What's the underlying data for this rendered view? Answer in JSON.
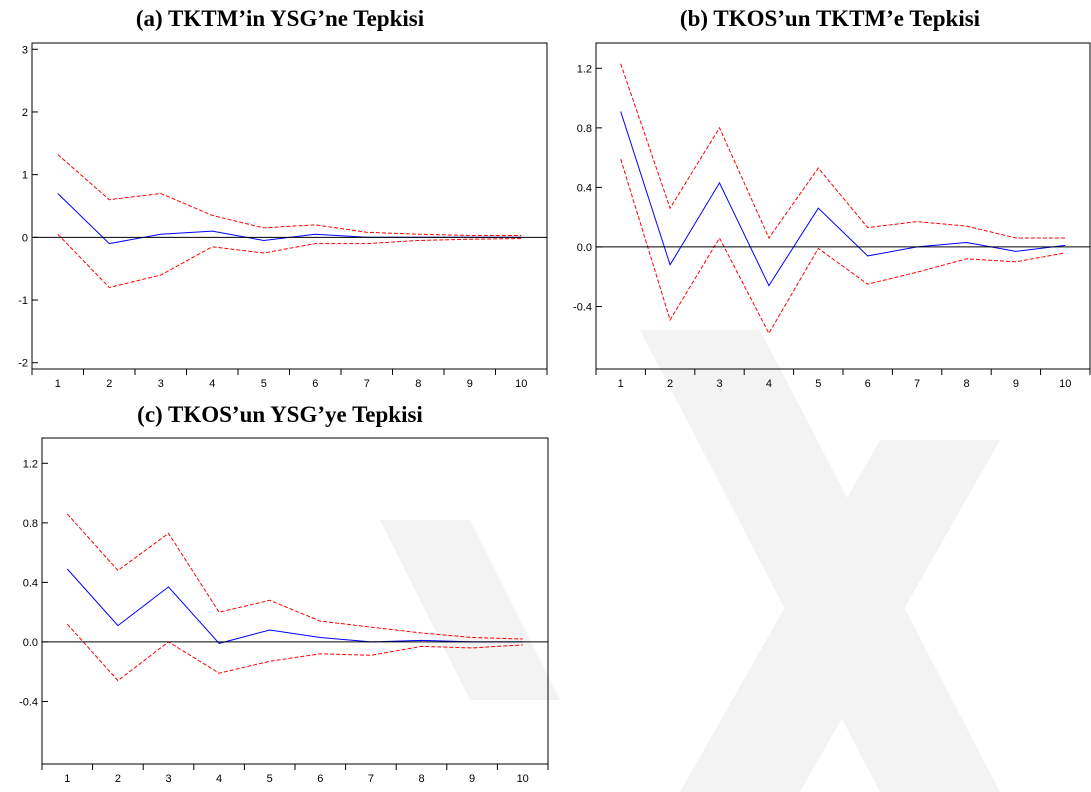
{
  "chart_data": [
    {
      "type": "line",
      "title": "(a) TKTM’in YSG’ne Tepkisi",
      "x": [
        1,
        2,
        3,
        4,
        5,
        6,
        7,
        8,
        9,
        10
      ],
      "xticks": [
        "1",
        "2",
        "3",
        "4",
        "5",
        "6",
        "7",
        "8",
        "9",
        "10"
      ],
      "ylim": [
        -2.1,
        3.1
      ],
      "yticks": [
        -2,
        -1,
        0,
        1,
        2,
        3
      ],
      "ytick_labels": [
        "-2",
        "-1",
        "0",
        "1",
        "2",
        "3"
      ],
      "series": [
        {
          "role": "response",
          "color": "#0000ff",
          "style": "solid",
          "values": [
            0.7,
            -0.1,
            0.05,
            0.1,
            -0.05,
            0.05,
            0.0,
            0.0,
            0.0,
            0.0
          ]
        },
        {
          "role": "upper",
          "color": "#ff0000",
          "style": "dashed",
          "values": [
            1.32,
            0.6,
            0.7,
            0.35,
            0.15,
            0.2,
            0.08,
            0.05,
            0.03,
            0.03
          ]
        },
        {
          "role": "lower",
          "color": "#ff0000",
          "style": "dashed",
          "values": [
            0.05,
            -0.8,
            -0.6,
            -0.15,
            -0.25,
            -0.1,
            -0.1,
            -0.05,
            -0.03,
            -0.02
          ]
        }
      ]
    },
    {
      "type": "line",
      "title": "(b) TKOS’un TKTM’e Tepkisi",
      "x": [
        1,
        2,
        3,
        4,
        5,
        6,
        7,
        8,
        9,
        10
      ],
      "xticks": [
        "1",
        "2",
        "3",
        "4",
        "5",
        "6",
        "7",
        "8",
        "9",
        "10"
      ],
      "ylim": [
        -0.82,
        1.37
      ],
      "yticks": [
        -0.4,
        0.0,
        0.4,
        0.8,
        1.2
      ],
      "ytick_labels": [
        "-0.4",
        "0.0",
        "0.4",
        "0.8",
        "1.2"
      ],
      "series": [
        {
          "role": "response",
          "color": "#0000ff",
          "style": "solid",
          "values": [
            0.91,
            -0.12,
            0.43,
            -0.26,
            0.26,
            -0.06,
            0.0,
            0.03,
            -0.03,
            0.01
          ]
        },
        {
          "role": "upper",
          "color": "#ff0000",
          "style": "dashed",
          "values": [
            1.23,
            0.26,
            0.8,
            0.06,
            0.53,
            0.13,
            0.17,
            0.14,
            0.06,
            0.06
          ]
        },
        {
          "role": "lower",
          "color": "#ff0000",
          "style": "dashed",
          "values": [
            0.59,
            -0.49,
            0.06,
            -0.58,
            -0.01,
            -0.25,
            -0.17,
            -0.08,
            -0.1,
            -0.04
          ]
        }
      ]
    },
    {
      "type": "line",
      "title": "(c) TKOS’un YSG’ye Tepkisi",
      "x": [
        1,
        2,
        3,
        4,
        5,
        6,
        7,
        8,
        9,
        10
      ],
      "xticks": [
        "1",
        "2",
        "3",
        "4",
        "5",
        "6",
        "7",
        "8",
        "9",
        "10"
      ],
      "ylim": [
        -0.82,
        1.37
      ],
      "yticks": [
        -0.4,
        0.0,
        0.4,
        0.8,
        1.2
      ],
      "ytick_labels": [
        "-0.4",
        "0.0",
        "0.4",
        "0.8",
        "1.2"
      ],
      "series": [
        {
          "role": "response",
          "color": "#0000ff",
          "style": "solid",
          "values": [
            0.49,
            0.11,
            0.37,
            -0.01,
            0.08,
            0.03,
            0.0,
            0.01,
            0.0,
            0.0
          ]
        },
        {
          "role": "upper",
          "color": "#ff0000",
          "style": "dashed",
          "values": [
            0.86,
            0.48,
            0.73,
            0.2,
            0.28,
            0.14,
            0.1,
            0.06,
            0.03,
            0.02
          ]
        },
        {
          "role": "lower",
          "color": "#ff0000",
          "style": "dashed",
          "values": [
            0.12,
            -0.26,
            0.0,
            -0.21,
            -0.13,
            -0.08,
            -0.09,
            -0.03,
            -0.04,
            -0.02
          ]
        }
      ]
    }
  ]
}
